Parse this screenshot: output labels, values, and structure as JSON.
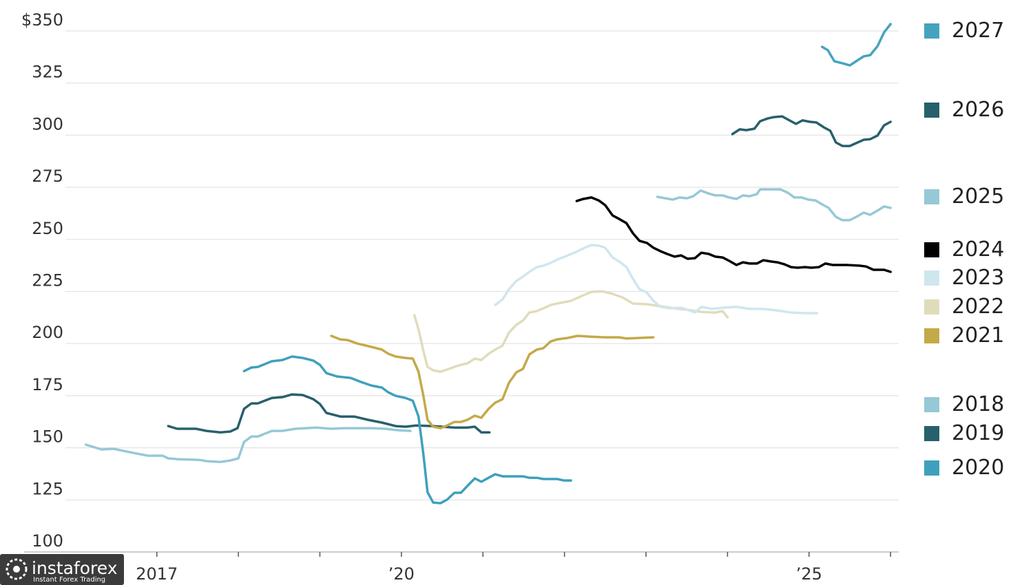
{
  "chart_data": {
    "type": "line",
    "xlim": [
      2015.6,
      2026.1
    ],
    "ylim": [
      100,
      350
    ],
    "yticks": [
      100,
      125,
      150,
      175,
      200,
      225,
      250,
      275,
      300,
      325,
      {
        "value": 350,
        "label": "$350"
      }
    ],
    "xticks": [
      {
        "value": 2017,
        "label": "2017"
      },
      {
        "value": 2020,
        "label": "’20"
      },
      {
        "value": 2025,
        "label": "’25"
      }
    ],
    "x_minor_ticks": [
      2018,
      2019,
      2021,
      2022,
      2023,
      2024,
      2026
    ],
    "grid": true,
    "series": [
      {
        "name": "2018",
        "color": "#96c8d6",
        "x": [
          2016.13,
          2016.32,
          2016.47,
          2016.68,
          2016.89,
          2017.07,
          2017.14,
          2017.27,
          2017.52,
          2017.61,
          2017.78,
          2017.9,
          2018.0,
          2018.07,
          2018.16,
          2018.24,
          2018.41,
          2018.54,
          2018.7,
          2018.96,
          2019.13,
          2019.3,
          2019.63,
          2019.8,
          2019.97,
          2020.11
        ],
        "values": [
          151.5,
          149.2,
          149.5,
          147.8,
          146.2,
          146.2,
          144.9,
          144.5,
          144.2,
          143.6,
          143.2,
          143.9,
          144.9,
          152.8,
          155.4,
          155.4,
          158.1,
          158.1,
          159.1,
          159.7,
          159.1,
          159.4,
          159.4,
          159.1,
          158.4,
          158.1
        ]
      },
      {
        "name": "2019",
        "color": "#28606c",
        "x": [
          2017.14,
          2017.25,
          2017.48,
          2017.61,
          2017.78,
          2017.9,
          2017.99,
          2018.07,
          2018.16,
          2018.24,
          2018.41,
          2018.54,
          2018.66,
          2018.79,
          2018.92,
          2019.0,
          2019.08,
          2019.25,
          2019.42,
          2019.59,
          2019.76,
          2019.93,
          2020.05,
          2020.18,
          2020.39,
          2020.65,
          2020.81,
          2020.9,
          2020.98,
          2021.08
        ],
        "values": [
          160.4,
          159.1,
          159.1,
          158.1,
          157.4,
          157.8,
          159.4,
          168.7,
          171.3,
          171.3,
          173.9,
          174.3,
          175.6,
          175.3,
          173.3,
          171.0,
          166.7,
          165.0,
          165.0,
          163.4,
          162.1,
          160.4,
          160.1,
          160.7,
          160.4,
          159.7,
          159.7,
          160.1,
          157.4,
          157.4
        ]
      },
      {
        "name": "2020",
        "color": "#3fa0bd",
        "x": [
          2018.07,
          2018.16,
          2018.24,
          2018.41,
          2018.54,
          2018.66,
          2018.79,
          2018.92,
          2019.0,
          2019.08,
          2019.21,
          2019.38,
          2019.51,
          2019.63,
          2019.76,
          2019.84,
          2019.93,
          2020.05,
          2020.14,
          2020.21,
          2020.27,
          2020.32,
          2020.39,
          2020.48,
          2020.56,
          2020.65,
          2020.73,
          2020.81,
          2020.9,
          2020.98,
          2021.07,
          2021.15,
          2021.24,
          2021.49,
          2021.57,
          2021.66,
          2021.74,
          2021.91,
          2021.99,
          2022.08
        ],
        "values": [
          186.8,
          188.5,
          188.8,
          191.5,
          192.1,
          193.8,
          193.1,
          191.8,
          189.8,
          185.8,
          184.2,
          183.5,
          181.5,
          179.9,
          178.9,
          176.6,
          174.9,
          173.9,
          172.6,
          165.0,
          146.9,
          128.7,
          123.7,
          123.4,
          125.1,
          128.4,
          128.4,
          131.7,
          135.3,
          133.7,
          135.6,
          137.3,
          136.3,
          136.3,
          135.6,
          135.6,
          135.0,
          135.0,
          134.3,
          134.3
        ]
      },
      {
        "name": "2021",
        "color": "#c4a94a",
        "x": [
          2019.14,
          2019.25,
          2019.34,
          2019.46,
          2019.63,
          2019.76,
          2019.84,
          2019.93,
          2020.05,
          2020.14,
          2020.21,
          2020.27,
          2020.32,
          2020.39,
          2020.48,
          2020.56,
          2020.65,
          2020.73,
          2020.81,
          2020.9,
          2020.98,
          2021.07,
          2021.15,
          2021.24,
          2021.32,
          2021.41,
          2021.49,
          2021.57,
          2021.66,
          2021.74,
          2021.83,
          2021.91,
          2022.04,
          2022.16,
          2022.33,
          2022.5,
          2022.67,
          2022.76,
          2022.92,
          2023.09
        ],
        "values": [
          203.7,
          202.0,
          201.7,
          200.0,
          198.4,
          197.1,
          195.1,
          193.8,
          193.1,
          192.8,
          186.5,
          174.9,
          163.4,
          160.1,
          159.4,
          160.7,
          162.4,
          162.4,
          163.4,
          165.4,
          164.4,
          168.7,
          171.6,
          173.3,
          181.2,
          186.2,
          187.8,
          194.8,
          197.1,
          197.8,
          201.0,
          202.0,
          202.7,
          203.7,
          203.3,
          203.0,
          203.0,
          202.4,
          202.7,
          203.0
        ]
      },
      {
        "name": "2022",
        "color": "#e0dcbb",
        "x": [
          2020.16,
          2020.22,
          2020.27,
          2020.32,
          2020.39,
          2020.48,
          2020.56,
          2020.65,
          2020.73,
          2020.81,
          2020.9,
          2020.98,
          2021.07,
          2021.15,
          2021.24,
          2021.32,
          2021.41,
          2021.49,
          2021.57,
          2021.66,
          2021.74,
          2021.83,
          2021.91,
          2022.08,
          2022.21,
          2022.33,
          2022.46,
          2022.59,
          2022.71,
          2022.84,
          2023.01,
          2023.18,
          2023.35,
          2023.51,
          2023.68,
          2023.85,
          2023.94,
          2024.0
        ],
        "values": [
          213.6,
          205.3,
          196.4,
          188.8,
          187.2,
          186.5,
          187.5,
          188.8,
          189.8,
          190.5,
          192.8,
          192.1,
          195.1,
          197.1,
          199.0,
          205.3,
          209.0,
          211.0,
          214.9,
          215.6,
          216.9,
          218.5,
          219.2,
          220.5,
          222.8,
          224.8,
          225.1,
          223.8,
          222.2,
          219.2,
          218.9,
          217.9,
          216.9,
          216.2,
          215.2,
          214.9,
          215.6,
          212.6
        ]
      },
      {
        "name": "2023",
        "color": "#d0e6ef",
        "x": [
          2021.15,
          2021.24,
          2021.32,
          2021.41,
          2021.49,
          2021.57,
          2021.66,
          2021.74,
          2021.83,
          2021.91,
          2022.04,
          2022.16,
          2022.25,
          2022.33,
          2022.42,
          2022.5,
          2022.59,
          2022.67,
          2022.76,
          2022.84,
          2022.92,
          2023.01,
          2023.09,
          2023.18,
          2023.3,
          2023.43,
          2023.51,
          2023.6,
          2023.68,
          2023.81,
          2023.94,
          2024.11,
          2024.27,
          2024.44,
          2024.61,
          2024.78,
          2024.95,
          2025.1
        ],
        "values": [
          218.5,
          221.2,
          226.1,
          230.1,
          232.1,
          234.4,
          236.7,
          237.4,
          238.7,
          240.3,
          242.3,
          244.3,
          246.0,
          247.3,
          247.0,
          246.0,
          241.3,
          239.4,
          236.7,
          231.1,
          226.1,
          224.5,
          220.5,
          217.6,
          216.9,
          217.2,
          216.2,
          214.9,
          217.6,
          216.6,
          217.2,
          217.6,
          216.6,
          216.6,
          215.9,
          214.9,
          214.6,
          214.6
        ]
      },
      {
        "name": "2024",
        "color": "#000000",
        "x": [
          2022.15,
          2022.23,
          2022.33,
          2022.42,
          2022.5,
          2022.59,
          2022.67,
          2022.76,
          2022.84,
          2022.92,
          2023.01,
          2023.09,
          2023.18,
          2023.26,
          2023.35,
          2023.43,
          2023.51,
          2023.6,
          2023.68,
          2023.77,
          2023.85,
          2023.94,
          2024.02,
          2024.11,
          2024.19,
          2024.27,
          2024.36,
          2024.44,
          2024.53,
          2024.61,
          2024.7,
          2024.78,
          2024.86,
          2024.95,
          2025.03,
          2025.12,
          2025.2,
          2025.29,
          2025.46,
          2025.62,
          2025.7,
          2025.79,
          2025.92,
          2026.0
        ],
        "values": [
          268.4,
          269.4,
          270.1,
          268.7,
          266.4,
          261.5,
          259.8,
          257.8,
          252.9,
          249.3,
          248.3,
          246.0,
          244.3,
          243.0,
          241.7,
          242.3,
          240.7,
          241.0,
          243.6,
          243.0,
          241.7,
          241.3,
          239.7,
          237.7,
          239.0,
          238.4,
          238.4,
          240.0,
          239.4,
          239.0,
          238.0,
          236.7,
          236.4,
          236.7,
          236.4,
          236.7,
          238.4,
          237.7,
          237.7,
          237.4,
          237.0,
          235.4,
          235.4,
          234.4
        ]
      },
      {
        "name": "2025",
        "color": "#96c8d6",
        "x": [
          2023.14,
          2023.24,
          2023.33,
          2023.41,
          2023.5,
          2023.58,
          2023.67,
          2023.77,
          2023.85,
          2023.94,
          2024.02,
          2024.11,
          2024.19,
          2024.27,
          2024.36,
          2024.4,
          2024.53,
          2024.65,
          2024.74,
          2024.82,
          2024.91,
          2024.99,
          2025.08,
          2025.16,
          2025.24,
          2025.33,
          2025.41,
          2025.5,
          2025.58,
          2025.67,
          2025.75,
          2025.84,
          2025.92,
          2026.0
        ],
        "values": [
          270.4,
          269.7,
          269.1,
          270.1,
          269.7,
          270.7,
          273.4,
          272.0,
          271.1,
          271.1,
          270.1,
          269.4,
          271.1,
          270.7,
          271.7,
          274.0,
          274.0,
          274.0,
          272.4,
          270.1,
          270.1,
          269.1,
          268.7,
          266.8,
          265.1,
          260.8,
          259.2,
          259.2,
          260.8,
          262.8,
          261.8,
          263.8,
          265.8,
          265.1
        ]
      },
      {
        "name": "2026",
        "color": "#28606c",
        "x": [
          2024.06,
          2024.15,
          2024.23,
          2024.33,
          2024.4,
          2024.49,
          2024.57,
          2024.67,
          2024.76,
          2024.84,
          2024.92,
          2025.01,
          2025.09,
          2025.18,
          2025.26,
          2025.33,
          2025.41,
          2025.5,
          2025.58,
          2025.67,
          2025.75,
          2025.84,
          2025.92,
          2026.0
        ],
        "values": [
          300.5,
          302.8,
          302.4,
          303.1,
          306.7,
          308.0,
          308.7,
          309.0,
          307.1,
          305.4,
          307.1,
          306.4,
          306.1,
          303.8,
          302.1,
          296.5,
          294.8,
          294.8,
          296.2,
          297.8,
          298.1,
          299.8,
          304.7,
          306.4
        ]
      },
      {
        "name": "2027",
        "color": "#45a3bf",
        "x": [
          2025.16,
          2025.23,
          2025.31,
          2025.41,
          2025.5,
          2025.58,
          2025.67,
          2025.75,
          2025.84,
          2025.92,
          2026.0
        ],
        "values": [
          342.4,
          340.8,
          335.5,
          334.5,
          333.5,
          335.5,
          337.8,
          338.4,
          342.7,
          349.3,
          353.3
        ]
      }
    ]
  },
  "watermark": {
    "brand": "instaforex",
    "tagline": "Instant Forex Trading"
  }
}
